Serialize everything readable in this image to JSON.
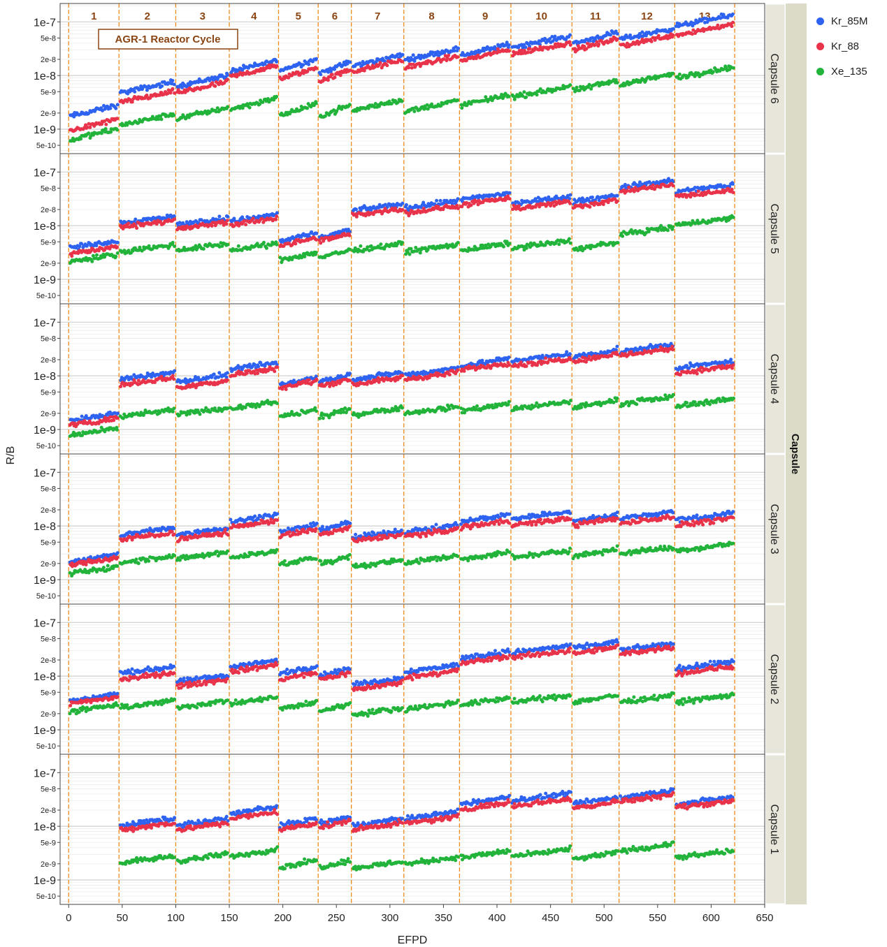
{
  "chart_data": {
    "type": "scatter",
    "xlabel": "EFPD",
    "ylabel": "R/B",
    "xlim": [
      -8,
      650
    ],
    "ylim": [
      3.5e-10,
      2.2e-07
    ],
    "y_scale": "log",
    "x_ticks": [
      0,
      50,
      100,
      150,
      200,
      250,
      300,
      350,
      400,
      450,
      500,
      550,
      600,
      650
    ],
    "x_tick_labels": [
      "0",
      "50",
      "100",
      "150",
      "200",
      "250",
      "300",
      "350",
      "400",
      "450",
      "500",
      "550",
      "600",
      "650"
    ],
    "y_ticks": [
      5e-10,
      1e-09,
      2e-09,
      5e-09,
      1e-08,
      2e-08,
      5e-08,
      1e-07
    ],
    "y_tick_labels": [
      "5e-10",
      "1e-9",
      "2e-9",
      "5e-9",
      "1e-8",
      "2e-8",
      "5e-8",
      "1e-7"
    ],
    "facet_title": "Capsule",
    "facets": [
      "Capsule 6",
      "Capsule 5",
      "Capsule 4",
      "Capsule 3",
      "Capsule 2",
      "Capsule 1"
    ],
    "annotation": "AGR-1 Reactor Cycle",
    "cycle_boundaries": [
      0,
      47,
      100,
      150,
      196,
      233,
      264,
      313,
      365,
      413,
      470,
      514,
      566,
      622
    ],
    "cycle_labels": [
      "1",
      "2",
      "3",
      "4",
      "5",
      "6",
      "7",
      "8",
      "9",
      "10",
      "11",
      "12",
      "13"
    ],
    "series": [
      {
        "name": "Kr_85M",
        "color": "#2e62f0"
      },
      {
        "name": "Kr_88",
        "color": "#e8334a"
      },
      {
        "name": "Xe_135",
        "color": "#22b33a"
      }
    ],
    "grid": true,
    "legend_position": "top-right",
    "cycle_levels": {
      "Capsule 6": {
        "Kr_85M": [
          2.2e-09,
          6e-09,
          8e-09,
          1.5e-08,
          1.6e-08,
          1.4e-08,
          1.9e-08,
          2.5e-08,
          3e-08,
          4.3e-08,
          5e-08,
          6e-08,
          1.05e-07
        ],
        "Kr_88": [
          1.2e-09,
          4e-09,
          6e-09,
          1.2e-08,
          1.1e-08,
          1e-08,
          1.5e-08,
          1.8e-08,
          2.4e-08,
          3.2e-08,
          3.8e-08,
          4.5e-08,
          7.2e-08
        ],
        "Xe_135": [
          8e-10,
          1.5e-09,
          2e-09,
          3e-09,
          2.3e-09,
          2.2e-09,
          2.8e-09,
          2.7e-09,
          3.5e-09,
          5e-09,
          6.5e-09,
          8.5e-09,
          1.15e-08
        ]
      },
      "Capsule 5": {
        "Kr_85M": [
          4.5e-09,
          1.3e-08,
          1.2e-08,
          1.4e-08,
          6e-09,
          7e-09,
          2.2e-08,
          2.5e-08,
          3.5e-08,
          3e-08,
          3.2e-08,
          6e-08,
          5e-08
        ],
        "Kr_88": [
          3.5e-09,
          1.1e-08,
          1e-08,
          1.2e-08,
          5e-09,
          6e-09,
          1.8e-08,
          2e-08,
          2.8e-08,
          2.4e-08,
          2.6e-08,
          5e-08,
          4e-08
        ],
        "Xe_135": [
          2.5e-09,
          3.8e-09,
          4e-09,
          4e-09,
          2.7e-09,
          3e-09,
          4e-09,
          3.8e-09,
          4e-09,
          4.5e-09,
          4.2e-09,
          8e-09,
          1.2e-08
        ]
      },
      "Capsule 4": {
        "Kr_85M": [
          1.7e-09,
          1e-08,
          9e-09,
          1.5e-08,
          8e-09,
          9e-09,
          1e-08,
          1.2e-08,
          1.8e-08,
          2.2e-08,
          2.6e-08,
          3.3e-08,
          1.6e-08
        ],
        "Kr_88": [
          1.4e-09,
          8e-09,
          7e-09,
          1.2e-08,
          7e-09,
          7.5e-09,
          8e-09,
          1e-08,
          1.5e-08,
          1.8e-08,
          2.2e-08,
          2.8e-08,
          1.3e-08
        ],
        "Xe_135": [
          9e-10,
          2e-09,
          2.2e-09,
          2.8e-09,
          2e-09,
          2e-09,
          2.2e-09,
          2.3e-09,
          2.6e-09,
          2.8e-09,
          3e-09,
          3.5e-09,
          3.2e-09
        ]
      },
      "Capsule 3": {
        "Kr_85M": [
          2.5e-09,
          8e-09,
          8e-09,
          1.4e-08,
          9e-09,
          1e-08,
          7e-09,
          9e-09,
          1.4e-08,
          1.6e-08,
          1.4e-08,
          1.6e-08,
          1.5e-08
        ],
        "Kr_88": [
          2.2e-09,
          6.5e-09,
          6.5e-09,
          1.1e-08,
          7.5e-09,
          8e-09,
          6e-09,
          7.5e-09,
          1.1e-08,
          1.2e-08,
          1.2e-08,
          1.3e-08,
          1.2e-08
        ],
        "Xe_135": [
          1.5e-09,
          2.4e-09,
          2.8e-09,
          3e-09,
          2.2e-09,
          2.3e-09,
          2e-09,
          2.4e-09,
          2.8e-09,
          3e-09,
          3.2e-09,
          3.5e-09,
          4e-09
        ]
      },
      "Capsule 2": {
        "Kr_85M": [
          4e-09,
          1.3e-08,
          9e-09,
          1.7e-08,
          1.3e-08,
          1.2e-08,
          8e-09,
          1.4e-08,
          2.5e-08,
          3.2e-08,
          3.8e-08,
          3.5e-08,
          1.6e-08
        ],
        "Kr_88": [
          3.5e-09,
          1e-08,
          7.5e-09,
          1.4e-08,
          1e-08,
          1e-08,
          6.5e-09,
          1.1e-08,
          2e-08,
          2.6e-08,
          3e-08,
          3e-08,
          1.3e-08
        ],
        "Xe_135": [
          2.5e-09,
          3e-09,
          3e-09,
          3.5e-09,
          2.8e-09,
          2.6e-09,
          2.2e-09,
          2.8e-09,
          3.4e-09,
          3.8e-09,
          3.8e-09,
          3.8e-09,
          3.8e-09
        ]
      },
      "Capsule 1": {
        "Kr_85M": [
          null,
          1.2e-08,
          1.2e-08,
          2e-08,
          1.2e-08,
          1.3e-08,
          1.2e-08,
          1.6e-08,
          3e-08,
          3.5e-08,
          3e-08,
          4e-08,
          3e-08
        ],
        "Kr_88": [
          null,
          1e-08,
          1e-08,
          1.6e-08,
          1e-08,
          1.1e-08,
          1e-08,
          1.3e-08,
          2.4e-08,
          2.8e-08,
          2.5e-08,
          3.4e-08,
          2.6e-08
        ],
        "Xe_135": [
          null,
          2.4e-09,
          2.6e-09,
          3.2e-09,
          2e-09,
          2e-09,
          1.9e-09,
          2.3e-09,
          3e-09,
          3.2e-09,
          2.8e-09,
          4e-09,
          3e-09
        ]
      }
    }
  }
}
